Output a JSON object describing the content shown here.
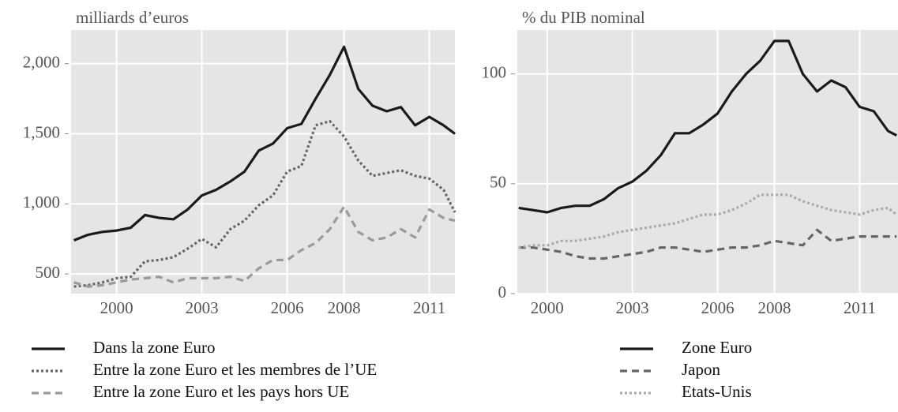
{
  "chart_data": [
    {
      "type": "line",
      "ylabel": "milliards d’euros",
      "x": [
        1998.5,
        1999,
        1999.5,
        2000,
        2000.5,
        2001,
        2001.5,
        2002,
        2002.5,
        2003,
        2003.5,
        2004,
        2004.5,
        2005,
        2005.5,
        2006,
        2006.5,
        2007,
        2007.5,
        2008,
        2008.5,
        2009,
        2009.5,
        2010,
        2010.5,
        2011,
        2011.5,
        2011.9
      ],
      "series": [
        {
          "name": "Dans la zone Euro",
          "color": "#1a1a1a",
          "dash": "solid",
          "values": [
            740,
            780,
            800,
            810,
            830,
            920,
            900,
            890,
            960,
            1060,
            1100,
            1160,
            1230,
            1380,
            1430,
            1540,
            1570,
            1750,
            1920,
            2120,
            1820,
            1700,
            1660,
            1690,
            1560,
            1620,
            1560,
            1500
          ]
        },
        {
          "name": "Entre la zone Euro et les membres de l’UE",
          "color": "#666666",
          "dash": "dotted",
          "values": [
            410,
            420,
            440,
            470,
            480,
            590,
            600,
            620,
            680,
            750,
            690,
            820,
            880,
            990,
            1060,
            1230,
            1270,
            1560,
            1590,
            1480,
            1310,
            1200,
            1220,
            1240,
            1200,
            1180,
            1100,
            940
          ]
        },
        {
          "name": "Entre la zone Euro et les pays hors UE",
          "color": "#9a9a9a",
          "dash": "dashed",
          "values": [
            440,
            410,
            420,
            440,
            460,
            470,
            480,
            440,
            470,
            470,
            470,
            480,
            450,
            540,
            600,
            600,
            670,
            720,
            820,
            980,
            800,
            740,
            760,
            820,
            760,
            960,
            900,
            880
          ]
        }
      ],
      "xlim": [
        1998.4,
        2011.9
      ],
      "xticks": [
        2000,
        2003,
        2006,
        2008,
        2011
      ],
      "ylim": [
        360,
        2240
      ],
      "yticks": [
        500,
        {
          "value": 1000,
          "label": "1,000"
        },
        {
          "value": 1500,
          "label": "1,500"
        },
        {
          "value": 2000,
          "label": "2,000"
        }
      ],
      "grid": true,
      "legend": "bottom"
    },
    {
      "type": "line",
      "ylabel": "% du PIB nominal",
      "x": [
        1999,
        1999.5,
        2000,
        2000.5,
        2001,
        2001.5,
        2002,
        2002.5,
        2003,
        2003.5,
        2004,
        2004.5,
        2005,
        2005.5,
        2006,
        2006.5,
        2007,
        2007.5,
        2008,
        2008.5,
        2009,
        2009.5,
        2010,
        2010.5,
        2011,
        2011.5,
        2012,
        2012.3
      ],
      "series": [
        {
          "name": "Zone Euro",
          "color": "#1a1a1a",
          "dash": "solid",
          "values": [
            39,
            38,
            37,
            39,
            40,
            40,
            43,
            48,
            51,
            56,
            63,
            73,
            73,
            77,
            82,
            92,
            100,
            106,
            115,
            115,
            100,
            92,
            97,
            94,
            85,
            83,
            74,
            72
          ]
        },
        {
          "name": "Japon",
          "color": "#666666",
          "dash": "dashed",
          "values": [
            21,
            21,
            20,
            19,
            17,
            16,
            16,
            17,
            18,
            19,
            21,
            21,
            20,
            19,
            20,
            21,
            21,
            22,
            24,
            23,
            22,
            29,
            24,
            25,
            26,
            26,
            26,
            26
          ]
        },
        {
          "name": "Etats-Unis",
          "color": "#aaaaaa",
          "dash": "dotted",
          "values": [
            21,
            22,
            22,
            24,
            24,
            25,
            26,
            28,
            29,
            30,
            31,
            32,
            34,
            36,
            36,
            38,
            41,
            45,
            45,
            45,
            42,
            40,
            38,
            37,
            36,
            38,
            39,
            36
          ]
        }
      ],
      "xlim": [
        1998.95,
        2012.35
      ],
      "xticks": [
        2000,
        2003,
        2006,
        2008,
        2011
      ],
      "ylim": [
        0,
        120
      ],
      "yticks": [
        0,
        50,
        100
      ],
      "grid": true,
      "legend": "bottom"
    }
  ]
}
